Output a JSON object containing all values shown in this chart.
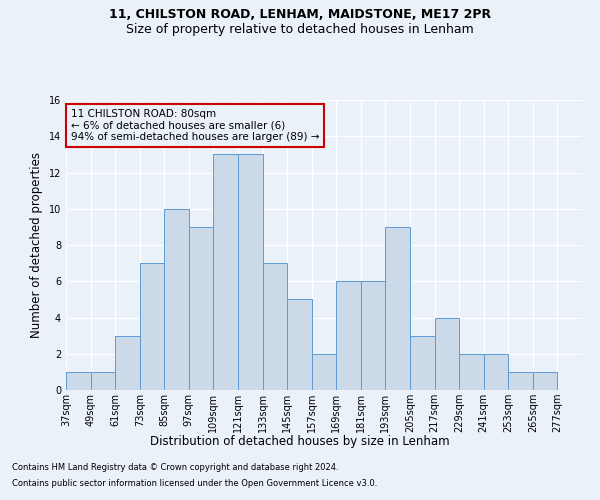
{
  "title1": "11, CHILSTON ROAD, LENHAM, MAIDSTONE, ME17 2PR",
  "title2": "Size of property relative to detached houses in Lenham",
  "xlabel": "Distribution of detached houses by size in Lenham",
  "ylabel": "Number of detached properties",
  "footnote1": "Contains HM Land Registry data © Crown copyright and database right 2024.",
  "footnote2": "Contains public sector information licensed under the Open Government Licence v3.0.",
  "annotation_line1": "11 CHILSTON ROAD: 80sqm",
  "annotation_line2": "← 6% of detached houses are smaller (6)",
  "annotation_line3": "94% of semi-detached houses are larger (89) →",
  "bar_left_edges": [
    37,
    49,
    61,
    73,
    85,
    97,
    109,
    121,
    133,
    145,
    157,
    169,
    181,
    193,
    205,
    217,
    229,
    241,
    253,
    265
  ],
  "bar_heights": [
    1,
    1,
    3,
    7,
    10,
    9,
    13,
    13,
    7,
    5,
    2,
    6,
    6,
    9,
    3,
    4,
    2,
    2,
    1,
    1
  ],
  "bin_width": 12,
  "bar_facecolor": "#ccd9e8",
  "bar_edgecolor": "#5b9bd5",
  "ylim": [
    0,
    16
  ],
  "yticks": [
    0,
    2,
    4,
    6,
    8,
    10,
    12,
    14,
    16
  ],
  "xlim_min": 37,
  "xlim_max": 289,
  "xtick_labels": [
    "37sqm",
    "49sqm",
    "61sqm",
    "73sqm",
    "85sqm",
    "97sqm",
    "109sqm",
    "121sqm",
    "133sqm",
    "145sqm",
    "157sqm",
    "169sqm",
    "181sqm",
    "193sqm",
    "205sqm",
    "217sqm",
    "229sqm",
    "241sqm",
    "253sqm",
    "265sqm",
    "277sqm"
  ],
  "xtick_positions": [
    37,
    49,
    61,
    73,
    85,
    97,
    109,
    121,
    133,
    145,
    157,
    169,
    181,
    193,
    205,
    217,
    229,
    241,
    253,
    265,
    277
  ],
  "background_color": "#eaf1f8",
  "annotation_box_color": "#cc0000",
  "grid_color": "#ffffff",
  "title1_fontsize": 9,
  "title2_fontsize": 9,
  "ylabel_fontsize": 8.5,
  "xlabel_fontsize": 8.5,
  "tick_fontsize": 7,
  "footnote_fontsize": 6,
  "annotation_fontsize": 7.5
}
